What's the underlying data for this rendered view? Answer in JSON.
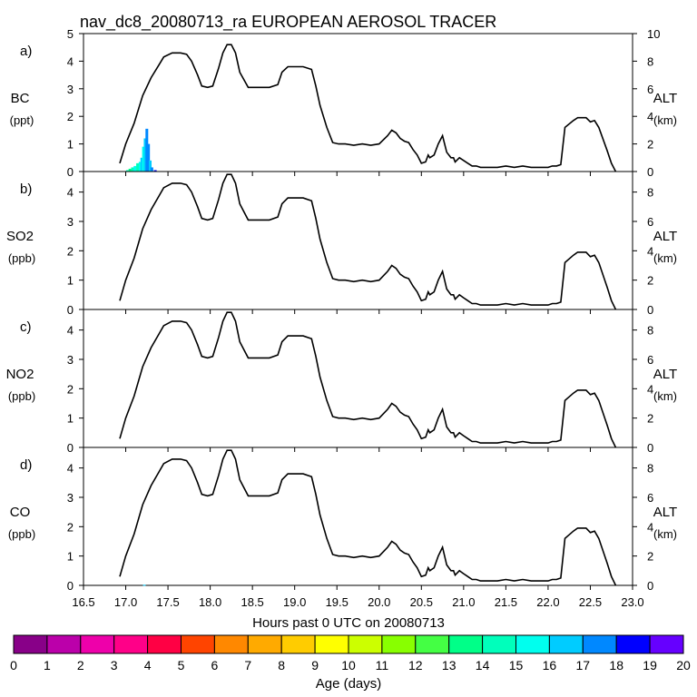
{
  "chart_data": {
    "type": "line",
    "title": "nav_dc8_20080713_ra EUROPEAN AEROSOL TRACER",
    "xlabel": "Hours past 0 UTC on 20080713",
    "xlim": [
      16.5,
      23.0
    ],
    "x_ticks": [
      "16.5",
      "17.0",
      "17.5",
      "18.0",
      "18.5",
      "19.0",
      "19.5",
      "20.0",
      "20.5",
      "21.0",
      "21.5",
      "22.0",
      "22.5",
      "23.0"
    ],
    "altitude_series": {
      "name": "ALT (km)",
      "x": [
        16.93,
        17.0,
        17.1,
        17.2,
        17.3,
        17.4,
        17.45,
        17.55,
        17.65,
        17.72,
        17.78,
        17.85,
        17.9,
        17.97,
        18.03,
        18.1,
        18.15,
        18.2,
        18.25,
        18.3,
        18.35,
        18.45,
        18.55,
        18.7,
        18.8,
        18.85,
        18.92,
        19.0,
        19.1,
        19.2,
        19.25,
        19.3,
        19.38,
        19.45,
        19.52,
        19.6,
        19.7,
        19.8,
        19.9,
        20.0,
        20.1,
        20.15,
        20.2,
        20.25,
        20.3,
        20.35,
        20.4,
        20.45,
        20.5,
        20.55,
        20.58,
        20.6,
        20.65,
        20.7,
        20.75,
        20.8,
        20.85,
        20.88,
        20.9,
        20.95,
        21.0,
        21.05,
        21.1,
        21.15,
        21.2,
        21.3,
        21.4,
        21.5,
        21.6,
        21.7,
        21.8,
        21.9,
        22.0,
        22.05,
        22.1,
        22.15,
        22.2,
        22.3,
        22.35,
        22.45,
        22.5,
        22.55,
        22.6,
        22.7,
        22.75,
        22.8
      ],
      "y": [
        0.6,
        2.0,
        3.5,
        5.5,
        6.8,
        7.8,
        8.3,
        8.6,
        8.6,
        8.5,
        8.0,
        7.0,
        6.2,
        6.1,
        6.2,
        7.5,
        8.6,
        9.2,
        9.2,
        8.6,
        7.2,
        6.1,
        6.1,
        6.1,
        6.3,
        7.2,
        7.6,
        7.6,
        7.6,
        7.4,
        6.2,
        4.8,
        3.2,
        2.1,
        2.0,
        2.0,
        1.9,
        2.0,
        1.9,
        2.0,
        2.6,
        3.0,
        2.8,
        2.4,
        2.2,
        2.1,
        1.6,
        1.2,
        0.6,
        0.7,
        1.2,
        1.0,
        1.2,
        2.0,
        2.6,
        1.4,
        1.0,
        1.0,
        0.7,
        1.0,
        0.8,
        0.6,
        0.4,
        0.4,
        0.3,
        0.3,
        0.3,
        0.4,
        0.3,
        0.4,
        0.3,
        0.3,
        0.3,
        0.4,
        0.4,
        0.5,
        3.2,
        3.7,
        3.9,
        3.9,
        3.6,
        3.7,
        3.2,
        1.5,
        0.6,
        0.0
      ]
    },
    "panels": [
      {
        "label": "a)",
        "species": "BC",
        "unit": "(ppt)",
        "ylim": [
          0,
          5
        ],
        "y_ticks": [
          "0",
          "1",
          "2",
          "3",
          "4",
          "5"
        ],
        "right_ticks": [
          "0",
          "2",
          "4",
          "6",
          "8",
          "10"
        ],
        "tracer_x": [
          17.02,
          17.05,
          17.08,
          17.11,
          17.14,
          17.17,
          17.19,
          17.21,
          17.23,
          17.25,
          17.27,
          17.29,
          17.31,
          17.35
        ],
        "tracer_y": [
          0.05,
          0.1,
          0.15,
          0.2,
          0.3,
          0.35,
          0.5,
          0.9,
          1.2,
          1.55,
          1.0,
          0.4,
          0.15,
          0.05
        ],
        "tracer_age": [
          14,
          13,
          14,
          15,
          14,
          15,
          16,
          15,
          16,
          17,
          17,
          16,
          17,
          18
        ]
      },
      {
        "label": "b)",
        "species": "SO2",
        "unit": "(ppb)",
        "ylim": [
          0,
          4.7
        ],
        "y_ticks": [
          "0",
          "1",
          "2",
          "3",
          "4"
        ],
        "right_ticks": [
          "0",
          "2",
          "4",
          "6",
          "8"
        ],
        "tracer_x": [],
        "tracer_y": [],
        "tracer_age": []
      },
      {
        "label": "c)",
        "species": "NO2",
        "unit": "(ppb)",
        "ylim": [
          0,
          4.7
        ],
        "y_ticks": [
          "0",
          "1",
          "2",
          "3",
          "4"
        ],
        "right_ticks": [
          "0",
          "2",
          "4",
          "6",
          "8"
        ],
        "tracer_x": [],
        "tracer_y": [],
        "tracer_age": []
      },
      {
        "label": "d)",
        "species": "CO",
        "unit": "(ppb)",
        "ylim": [
          0,
          4.7
        ],
        "y_ticks": [
          "0",
          "1",
          "2",
          "3",
          "4"
        ],
        "right_ticks": [
          "0",
          "2",
          "4",
          "6",
          "8"
        ],
        "tracer_x": [
          17.22
        ],
        "tracer_y": [
          0.02
        ],
        "tracer_age": [
          16
        ]
      }
    ],
    "right_axis_label": "ALT",
    "right_axis_unit": "(km)",
    "colorbar": {
      "label": "Age (days)",
      "ticks": [
        "0",
        "1",
        "2",
        "3",
        "4",
        "5",
        "6",
        "7",
        "8",
        "9",
        "10",
        "11",
        "12",
        "13",
        "14",
        "15",
        "16",
        "17",
        "18",
        "19",
        "20"
      ],
      "colors": [
        "#880088",
        "#bb00aa",
        "#ee00aa",
        "#ff0088",
        "#ff0044",
        "#ff4400",
        "#ff8800",
        "#ffaa00",
        "#ffcc00",
        "#ffff00",
        "#ccff00",
        "#88ff00",
        "#44ff44",
        "#00ff88",
        "#00ffbb",
        "#00ffee",
        "#00ccff",
        "#0088ff",
        "#0000ff",
        "#6600ff"
      ]
    }
  }
}
